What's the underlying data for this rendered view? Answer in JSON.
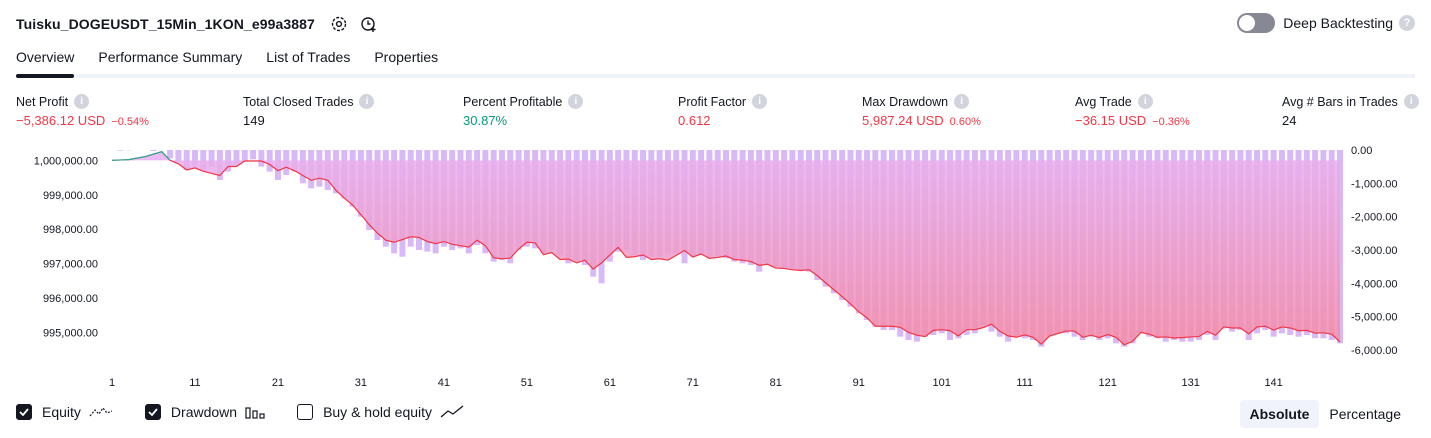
{
  "header": {
    "title": "Tuisku_DOGEUSDT_15Min_1KON_e99a3887",
    "deep_backtesting_label": "Deep Backtesting",
    "deep_backtesting_on": false
  },
  "tabs": [
    {
      "label": "Overview",
      "active": true
    },
    {
      "label": "Performance Summary",
      "active": false
    },
    {
      "label": "List of Trades",
      "active": false
    },
    {
      "label": "Properties",
      "active": false
    }
  ],
  "metrics": [
    {
      "label": "Net Profit",
      "value": "−5,386.12 USD",
      "pct": "−0.54%",
      "color": "red"
    },
    {
      "label": "Total Closed Trades",
      "value": "149",
      "pct": "",
      "color": "normal"
    },
    {
      "label": "Percent Profitable",
      "value": "30.87%",
      "pct": "",
      "color": "green"
    },
    {
      "label": "Profit Factor",
      "value": "0.612",
      "pct": "",
      "color": "red"
    },
    {
      "label": "Max Drawdown",
      "value": "5,987.24 USD",
      "pct": "0.60%",
      "color": "red"
    },
    {
      "label": "Avg Trade",
      "value": "−36.15 USD",
      "pct": "−0.36%",
      "color": "red"
    },
    {
      "label": "Avg # Bars in Trades",
      "value": "24",
      "pct": "",
      "color": "normal"
    }
  ],
  "legend": {
    "equity_label": "Equity",
    "drawdown_label": "Drawdown",
    "buyhold_label": "Buy & hold equity",
    "equity_checked": true,
    "drawdown_checked": true,
    "buyhold_checked": false
  },
  "modes": [
    {
      "label": "Absolute",
      "active": true
    },
    {
      "label": "Percentage",
      "active": false
    }
  ],
  "colors": {
    "accent": "#131722",
    "red": "#f23645",
    "green": "#089981",
    "drawdown_bar": "#d9b8f7",
    "equity_fill_top": "#e7b0f0",
    "equity_fill_bottom": "#f38aa6"
  },
  "chart_data": {
    "type": "area",
    "x_ticks": [
      1,
      11,
      21,
      31,
      41,
      51,
      61,
      71,
      81,
      91,
      101,
      111,
      121,
      131,
      141
    ],
    "x_range": [
      1,
      149
    ],
    "y_left": {
      "ticks": [
        1000000,
        999000,
        998000,
        997000,
        996000,
        995000
      ],
      "tick_labels": [
        "1,000,000.00",
        "999,000.00",
        "998,000.00",
        "997,000.00",
        "996,000.00",
        "995,000.00"
      ],
      "range": [
        994200,
        1000300
      ]
    },
    "y_right": {
      "ticks": [
        0,
        -1000,
        -2000,
        -3000,
        -4000,
        -5000,
        -6000
      ],
      "tick_labels": [
        "0.00",
        "-1,000.00",
        "-2,000.00",
        "-3,000.00",
        "-4,000.00",
        "-5,000.00",
        "-6,000.00"
      ],
      "range": [
        -6300,
        0
      ]
    },
    "equity_points": [
      [
        1,
        1000000
      ],
      [
        3,
        1000020
      ],
      [
        5,
        1000110
      ],
      [
        7,
        1000250
      ],
      [
        8,
        1000000
      ],
      [
        9,
        999900
      ],
      [
        10,
        999720
      ],
      [
        11,
        999780
      ],
      [
        12,
        999680
      ],
      [
        13,
        999620
      ],
      [
        14,
        999560
      ],
      [
        15,
        999820
      ],
      [
        16,
        999820
      ],
      [
        17,
        999980
      ],
      [
        19,
        999980
      ],
      [
        20,
        999880
      ],
      [
        21,
        999700
      ],
      [
        22,
        999800
      ],
      [
        23,
        999700
      ],
      [
        24,
        999560
      ],
      [
        25,
        999420
      ],
      [
        26,
        999480
      ],
      [
        27,
        999420
      ],
      [
        28,
        999130
      ],
      [
        29,
        998900
      ],
      [
        30,
        998700
      ],
      [
        31,
        998420
      ],
      [
        32,
        998130
      ],
      [
        33,
        997880
      ],
      [
        34,
        997680
      ],
      [
        35,
        997620
      ],
      [
        36,
        997700
      ],
      [
        37,
        997780
      ],
      [
        38,
        997760
      ],
      [
        39,
        997640
      ],
      [
        40,
        997580
      ],
      [
        41,
        997640
      ],
      [
        42,
        997560
      ],
      [
        43,
        997520
      ],
      [
        44,
        997480
      ],
      [
        45,
        997680
      ],
      [
        46,
        997520
      ],
      [
        47,
        997170
      ],
      [
        48,
        997140
      ],
      [
        49,
        997160
      ],
      [
        50,
        997420
      ],
      [
        51,
        997620
      ],
      [
        52,
        997600
      ],
      [
        53,
        997260
      ],
      [
        54,
        997320
      ],
      [
        55,
        997120
      ],
      [
        56,
        997130
      ],
      [
        57,
        997020
      ],
      [
        58,
        997100
      ],
      [
        59,
        996840
      ],
      [
        60,
        997020
      ],
      [
        61,
        997250
      ],
      [
        62,
        997470
      ],
      [
        63,
        997180
      ],
      [
        64,
        997200
      ],
      [
        65,
        997250
      ],
      [
        66,
        997120
      ],
      [
        67,
        997140
      ],
      [
        68,
        997100
      ],
      [
        69,
        997240
      ],
      [
        70,
        997380
      ],
      [
        71,
        997190
      ],
      [
        72,
        997280
      ],
      [
        73,
        997150
      ],
      [
        74,
        997180
      ],
      [
        75,
        997220
      ],
      [
        76,
        997120
      ],
      [
        77,
        997100
      ],
      [
        78,
        997060
      ],
      [
        79,
        996950
      ],
      [
        80,
        996980
      ],
      [
        81,
        996870
      ],
      [
        82,
        996860
      ],
      [
        83,
        996820
      ],
      [
        84,
        996800
      ],
      [
        85,
        996820
      ],
      [
        86,
        996650
      ],
      [
        87,
        996440
      ],
      [
        88,
        996240
      ],
      [
        89,
        996040
      ],
      [
        90,
        995830
      ],
      [
        91,
        995600
      ],
      [
        92,
        995420
      ],
      [
        93,
        995180
      ],
      [
        94,
        995180
      ],
      [
        95,
        995180
      ],
      [
        96,
        995150
      ],
      [
        97,
        995000
      ],
      [
        98,
        994920
      ],
      [
        99,
        994880
      ],
      [
        100,
        995060
      ],
      [
        101,
        995080
      ],
      [
        102,
        995050
      ],
      [
        103,
        994900
      ],
      [
        104,
        995080
      ],
      [
        105,
        995080
      ],
      [
        106,
        995140
      ],
      [
        107,
        995240
      ],
      [
        108,
        995030
      ],
      [
        109,
        994900
      ],
      [
        110,
        994860
      ],
      [
        111,
        994930
      ],
      [
        112,
        994860
      ],
      [
        113,
        994660
      ],
      [
        114,
        994900
      ],
      [
        115,
        994970
      ],
      [
        116,
        995040
      ],
      [
        117,
        995040
      ],
      [
        118,
        994860
      ],
      [
        119,
        994920
      ],
      [
        120,
        994850
      ],
      [
        121,
        994940
      ],
      [
        122,
        994860
      ],
      [
        123,
        994640
      ],
      [
        124,
        994740
      ],
      [
        125,
        995000
      ],
      [
        126,
        994950
      ],
      [
        127,
        994860
      ],
      [
        128,
        994870
      ],
      [
        129,
        994840
      ],
      [
        130,
        994850
      ],
      [
        131,
        994870
      ],
      [
        132,
        994880
      ],
      [
        133,
        995030
      ],
      [
        134,
        994920
      ],
      [
        135,
        995160
      ],
      [
        136,
        995130
      ],
      [
        137,
        995130
      ],
      [
        138,
        994960
      ],
      [
        139,
        995160
      ],
      [
        140,
        995180
      ],
      [
        141,
        995070
      ],
      [
        142,
        995160
      ],
      [
        143,
        995130
      ],
      [
        144,
        995050
      ],
      [
        145,
        995060
      ],
      [
        146,
        994980
      ],
      [
        147,
        994990
      ],
      [
        148,
        994950
      ],
      [
        149,
        994720
      ]
    ],
    "drawdown_values": [
      0,
      -20,
      -10,
      0,
      0,
      -30,
      0,
      -250,
      -350,
      -600,
      -500,
      -630,
      -500,
      -900,
      -650,
      -450,
      -350,
      -280,
      -500,
      -650,
      -900,
      -750,
      -650,
      -1000,
      -1150,
      -1100,
      -1200,
      -1300,
      -1450,
      -1700,
      -2000,
      -2400,
      -2700,
      -2900,
      -3100,
      -3200,
      -2900,
      -3000,
      -3050,
      -3100,
      -2900,
      -3000,
      -2950,
      -3100,
      -2850,
      -3100,
      -3350,
      -3300,
      -3400,
      -3000,
      -2900,
      -2950,
      -3100,
      -3000,
      -3150,
      -3400,
      -3350,
      -3450,
      -3800,
      -4000,
      -3350,
      -3050,
      -3000,
      -3150,
      -3300,
      -3200,
      -3200,
      -3100,
      -3100,
      -3400,
      -3200,
      -3150,
      -3250,
      -3200,
      -3250,
      -3350,
      -3400,
      -3450,
      -3650,
      -3450,
      -3500,
      -3550,
      -3600,
      -3600,
      -3650,
      -3900,
      -4100,
      -4300,
      -4500,
      -4700,
      -4900,
      -5100,
      -5300,
      -5400,
      -5400,
      -5600,
      -5700,
      -5750,
      -5600,
      -5550,
      -5500,
      -5700,
      -5650,
      -5550,
      -5500,
      -5250,
      -5450,
      -5600,
      -5750,
      -5600,
      -5650,
      -5700,
      -5900,
      -5600,
      -5500,
      -5500,
      -5600,
      -5700,
      -5600,
      -5700,
      -5650,
      -5800,
      -5900,
      -5800,
      -5500,
      -5600,
      -5650,
      -5750,
      -5700,
      -5750,
      -5750,
      -5700,
      -5550,
      -5700,
      -5350,
      -5450,
      -5400,
      -5700,
      -5500,
      -5400,
      -5600,
      -5500,
      -5550,
      -5600,
      -5550,
      -5650,
      -5650,
      -5700,
      -5800
    ]
  }
}
